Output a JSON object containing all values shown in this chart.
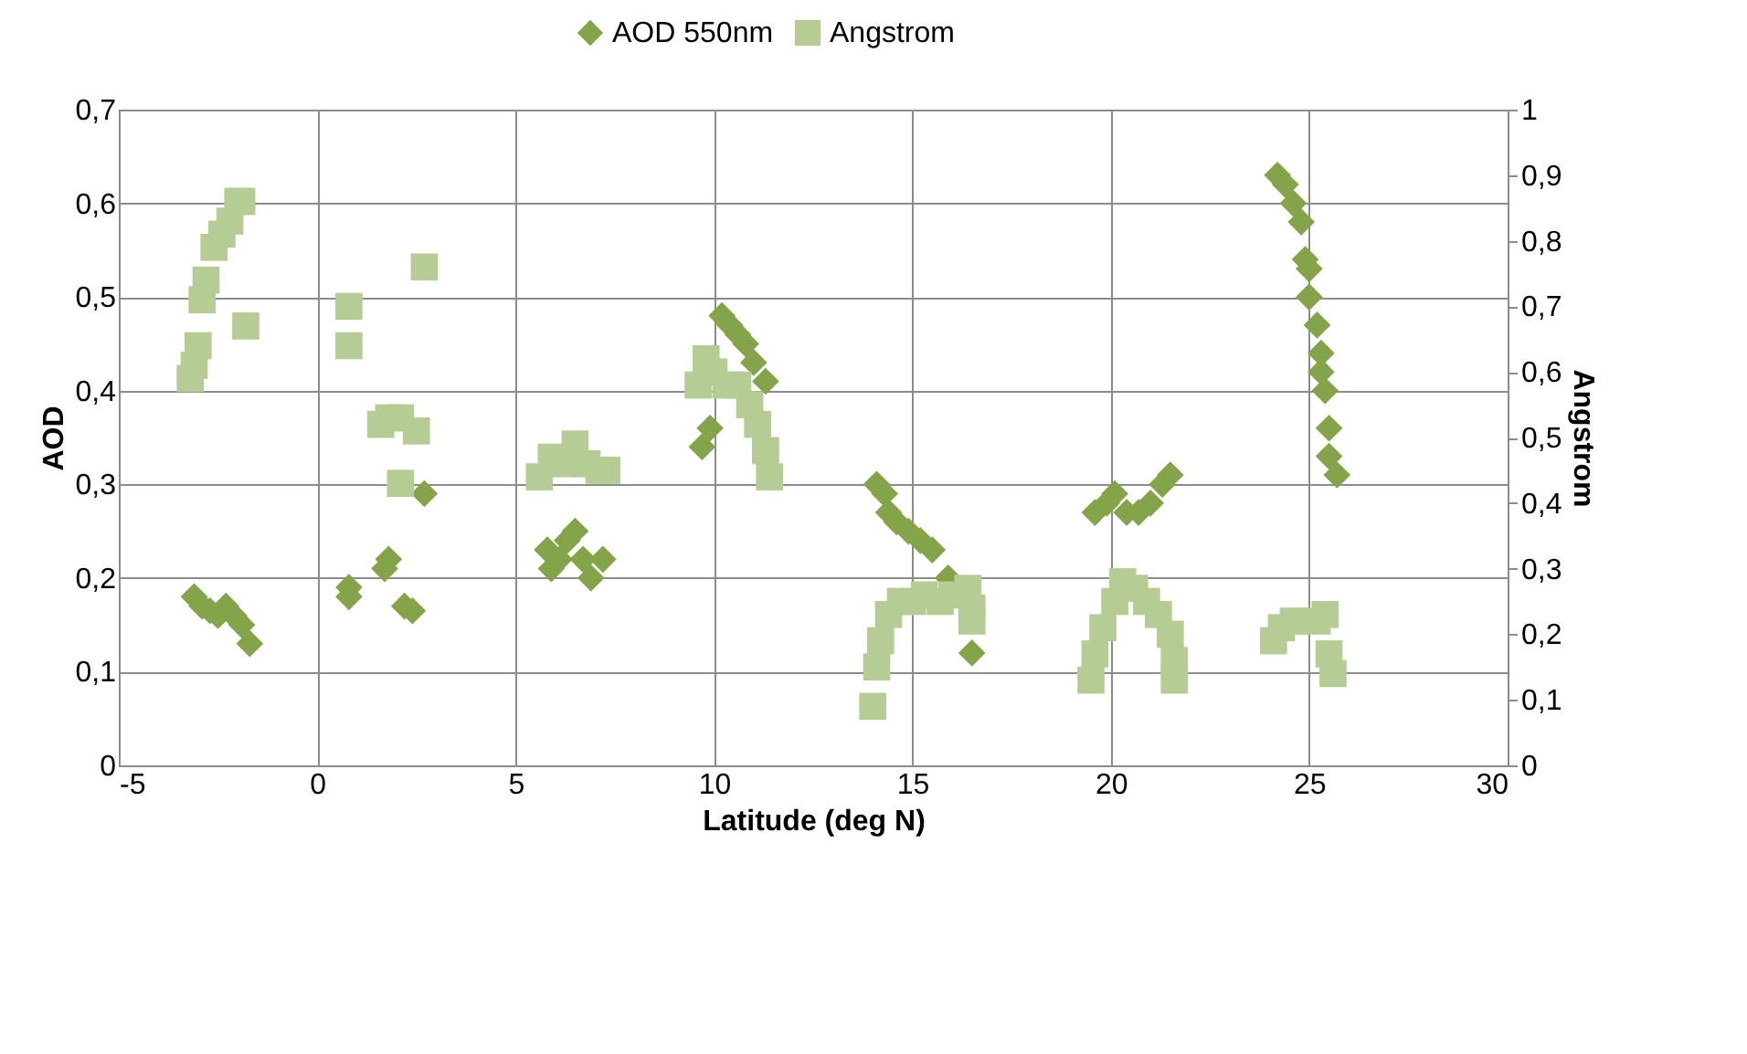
{
  "chart_data": {
    "type": "scatter",
    "xlabel": "Latitude (deg N)",
    "ylabel": "AOD",
    "y2label": "Angstrom",
    "xlim": [
      -5,
      30
    ],
    "xticks": [
      -5,
      0,
      5,
      10,
      15,
      20,
      25,
      30
    ],
    "ylim": [
      0,
      0.7
    ],
    "yticks": [
      0,
      {
        "value": 0.1,
        "label": "0,1"
      },
      {
        "value": 0.2,
        "label": "0,2"
      },
      {
        "value": 0.3,
        "label": "0,3"
      },
      {
        "value": 0.4,
        "label": "0,4"
      },
      {
        "value": 0.5,
        "label": "0,5"
      },
      {
        "value": 0.6,
        "label": "0,6"
      },
      {
        "value": 0.7,
        "label": "0,7"
      }
    ],
    "y2lim": [
      0,
      1
    ],
    "y2ticks": [
      0,
      {
        "value": 0.1,
        "label": "0,1"
      },
      {
        "value": 0.2,
        "label": "0,2"
      },
      {
        "value": 0.3,
        "label": "0,3"
      },
      {
        "value": 0.4,
        "label": "0,4"
      },
      {
        "value": 0.5,
        "label": "0,5"
      },
      {
        "value": 0.6,
        "label": "0,6"
      },
      {
        "value": 0.7,
        "label": "0,7"
      },
      {
        "value": 0.8,
        "label": "0,8"
      },
      {
        "value": 0.9,
        "label": "0,9"
      },
      1
    ],
    "grid": true,
    "legend": "top",
    "series": [
      {
        "name": "AOD 550nm",
        "color": "#84a44a",
        "marker": "diamond",
        "x": [
          -3.1,
          -2.9,
          -2.7,
          -2.5,
          -2.3,
          -2.1,
          -1.9,
          -1.7,
          0.8,
          0.8,
          1.7,
          1.8,
          2.2,
          2.4,
          2.7,
          5.8,
          5.9,
          6.1,
          6.3,
          6.5,
          6.7,
          6.9,
          7.2,
          9.7,
          9.9,
          10.2,
          10.4,
          10.6,
          10.8,
          11.0,
          11.3,
          14.1,
          14.3,
          14.4,
          14.6,
          14.9,
          15.2,
          15.5,
          15.9,
          16.5,
          19.6,
          19.9,
          20.1,
          20.4,
          20.7,
          21.0,
          21.3,
          21.5,
          24.2,
          24.4,
          24.6,
          24.8,
          24.9,
          25.0,
          25.0,
          25.2,
          25.3,
          25.3,
          25.4,
          25.5,
          25.5,
          25.7
        ],
        "values": [
          0.18,
          0.17,
          0.165,
          0.16,
          0.17,
          0.16,
          0.15,
          0.13,
          0.19,
          0.18,
          0.21,
          0.22,
          0.17,
          0.165,
          0.29,
          0.23,
          0.21,
          0.22,
          0.24,
          0.25,
          0.22,
          0.2,
          0.22,
          0.34,
          0.36,
          0.48,
          0.47,
          0.46,
          0.45,
          0.43,
          0.41,
          0.3,
          0.29,
          0.27,
          0.26,
          0.25,
          0.24,
          0.23,
          0.2,
          0.12,
          0.27,
          0.28,
          0.29,
          0.27,
          0.27,
          0.28,
          0.3,
          0.31,
          0.63,
          0.62,
          0.6,
          0.58,
          0.54,
          0.53,
          0.5,
          0.47,
          0.44,
          0.42,
          0.4,
          0.36,
          0.33,
          0.31
        ]
      },
      {
        "name": "Angstrom",
        "color": "#b5cd94",
        "marker": "square",
        "axis": "y2",
        "x": [
          -3.2,
          -3.1,
          -3.0,
          -2.9,
          -2.8,
          -2.6,
          -2.4,
          -2.2,
          -2.0,
          -1.9,
          -1.8,
          0.8,
          0.8,
          1.6,
          1.8,
          2.1,
          2.5,
          2.1,
          2.7,
          5.6,
          5.9,
          6.2,
          6.5,
          6.8,
          7.1,
          7.3,
          9.6,
          9.8,
          10.0,
          10.3,
          10.6,
          10.9,
          11.1,
          11.3,
          11.4,
          14.0,
          14.1,
          14.2,
          14.4,
          14.7,
          15.0,
          15.3,
          15.7,
          16.0,
          16.4,
          16.5,
          16.5,
          19.5,
          19.6,
          19.8,
          20.1,
          20.3,
          20.6,
          20.9,
          21.2,
          21.5,
          21.6,
          21.6,
          24.1,
          24.3,
          24.6,
          25.2,
          25.4,
          25.5,
          25.6
        ],
        "values": [
          0.59,
          0.61,
          0.64,
          0.71,
          0.74,
          0.79,
          0.81,
          0.83,
          0.86,
          0.86,
          0.67,
          0.7,
          0.64,
          0.52,
          0.53,
          0.53,
          0.51,
          0.43,
          0.76,
          0.44,
          0.47,
          0.46,
          0.49,
          0.46,
          0.45,
          0.45,
          0.58,
          0.62,
          0.6,
          0.58,
          0.58,
          0.55,
          0.52,
          0.48,
          0.44,
          0.09,
          0.15,
          0.19,
          0.23,
          0.25,
          0.25,
          0.26,
          0.25,
          0.26,
          0.27,
          0.22,
          0.24,
          0.13,
          0.17,
          0.21,
          0.25,
          0.28,
          0.27,
          0.25,
          0.23,
          0.2,
          0.16,
          0.13,
          0.19,
          0.21,
          0.22,
          0.22,
          0.23,
          0.17,
          0.14
        ]
      }
    ]
  }
}
